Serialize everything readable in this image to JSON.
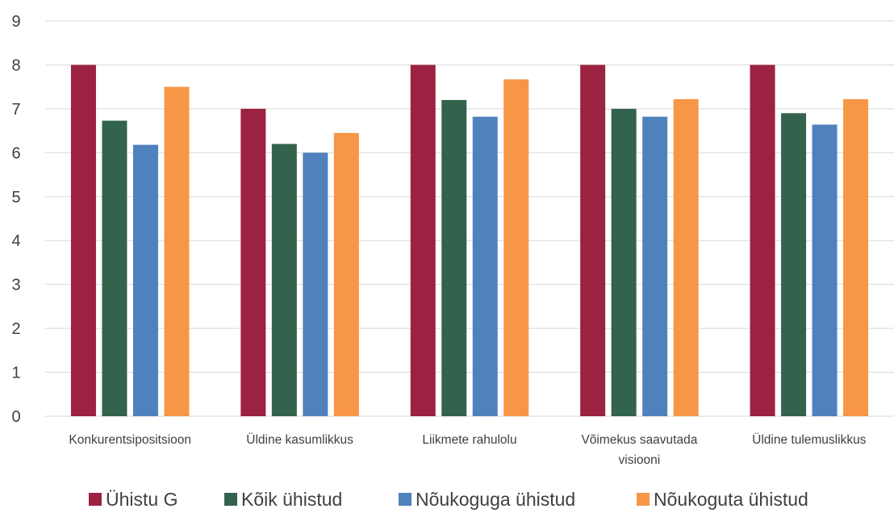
{
  "chart_data": {
    "type": "bar",
    "title": "",
    "xlabel": "",
    "ylabel": "",
    "ylim": [
      0,
      9
    ],
    "yticks": [
      0,
      1,
      2,
      3,
      4,
      5,
      6,
      7,
      8,
      9
    ],
    "grid": true,
    "legend_position": "bottom",
    "categories": [
      [
        "Konkurentsipositsioon"
      ],
      [
        "Üldine kasumlikkus"
      ],
      [
        "Liikmete rahulolu"
      ],
      [
        "Võimekus saavutada",
        "visiooni"
      ],
      [
        "Üldine tulemuslikkus"
      ]
    ],
    "series": [
      {
        "name": "Ühistu G",
        "color": "#9b2240",
        "values": [
          8.0,
          7.0,
          8.0,
          8.0,
          8.0
        ]
      },
      {
        "name": "Kõik ühistud",
        "color": "#33634c",
        "values": [
          6.73,
          6.2,
          7.2,
          7.0,
          6.9
        ]
      },
      {
        "name": "Nõukoguga ühistud",
        "color": "#4f81bd",
        "values": [
          6.18,
          6.0,
          6.82,
          6.82,
          6.64
        ]
      },
      {
        "name": "Nõukoguta ühistud",
        "color": "#f79646",
        "values": [
          7.5,
          6.45,
          7.67,
          7.22,
          7.22
        ]
      }
    ]
  }
}
